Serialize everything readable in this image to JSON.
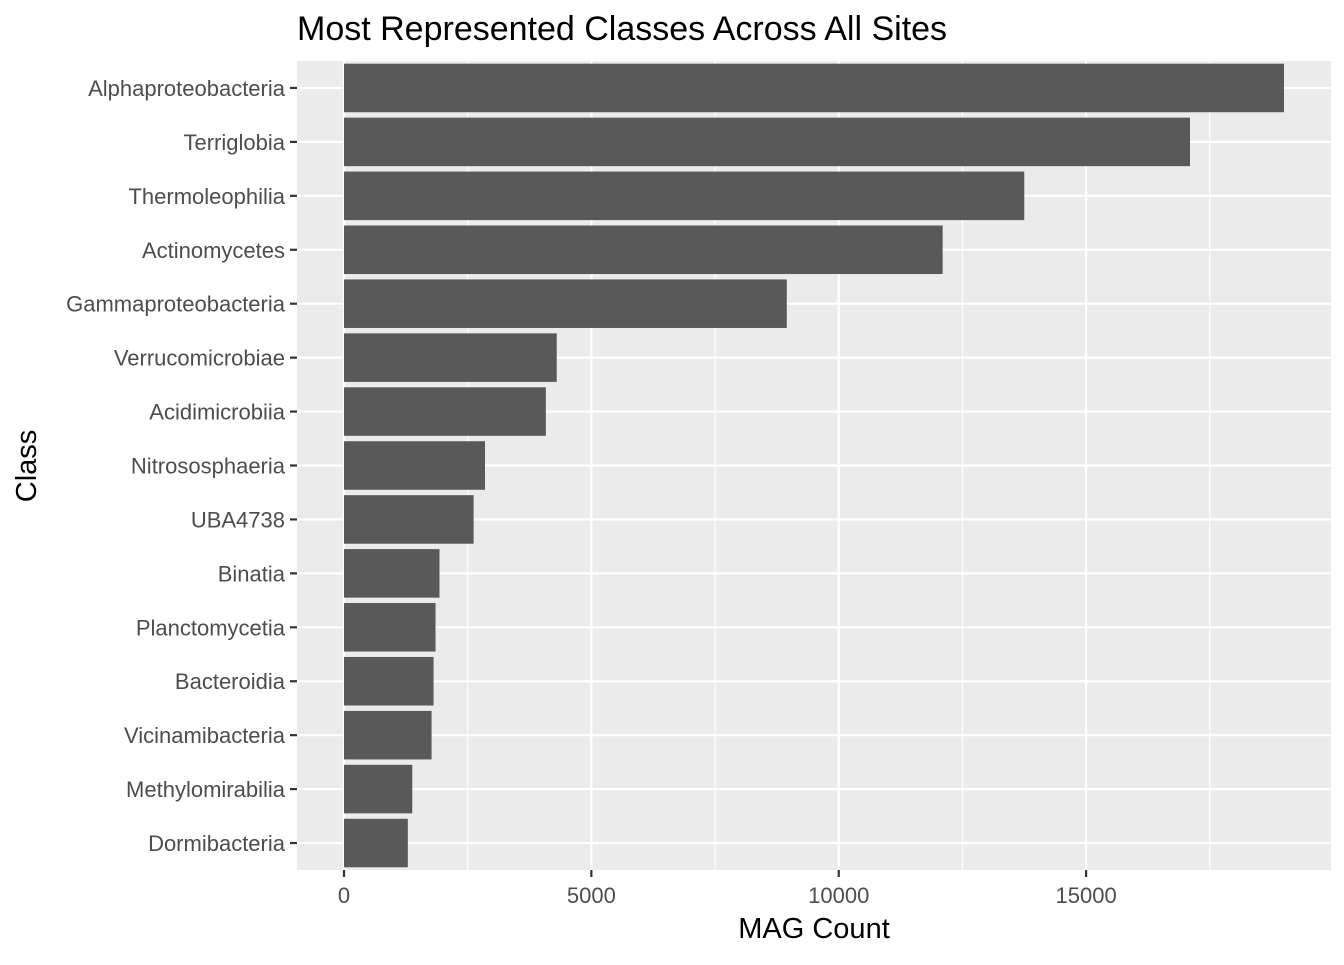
{
  "chart_data": {
    "type": "bar",
    "orientation": "horizontal",
    "title": "Most Represented Classes Across All Sites",
    "xlabel": "MAG Count",
    "ylabel": "Class",
    "categories": [
      "Alphaproteobacteria",
      "Terriglobia",
      "Thermoleophilia",
      "Actinomycetes",
      "Gammaproteobacteria",
      "Verrucomicrobiae",
      "Acidimicrobiia",
      "Nitrososphaeria",
      "UBA4738",
      "Binatia",
      "Planctomycetia",
      "Bacteroidia",
      "Vicinamibacteria",
      "Methylomirabilia",
      "Dormibacteria"
    ],
    "values": [
      19000,
      17100,
      13750,
      12100,
      8950,
      4300,
      4080,
      2850,
      2620,
      1930,
      1850,
      1810,
      1770,
      1380,
      1290
    ],
    "xlim": [
      -950,
      19950
    ],
    "x_ticks": [
      0,
      5000,
      10000,
      15000
    ],
    "x_tick_labels": [
      "0",
      "5000",
      "10000",
      "15000"
    ],
    "grid": true,
    "legend": "none",
    "colors": {
      "bar": "#595959",
      "panel": "#ebebeb",
      "grid": "#ffffff",
      "text": "#000000",
      "tick_text": "#4d4d4d",
      "tick_mark": "#333333"
    }
  }
}
